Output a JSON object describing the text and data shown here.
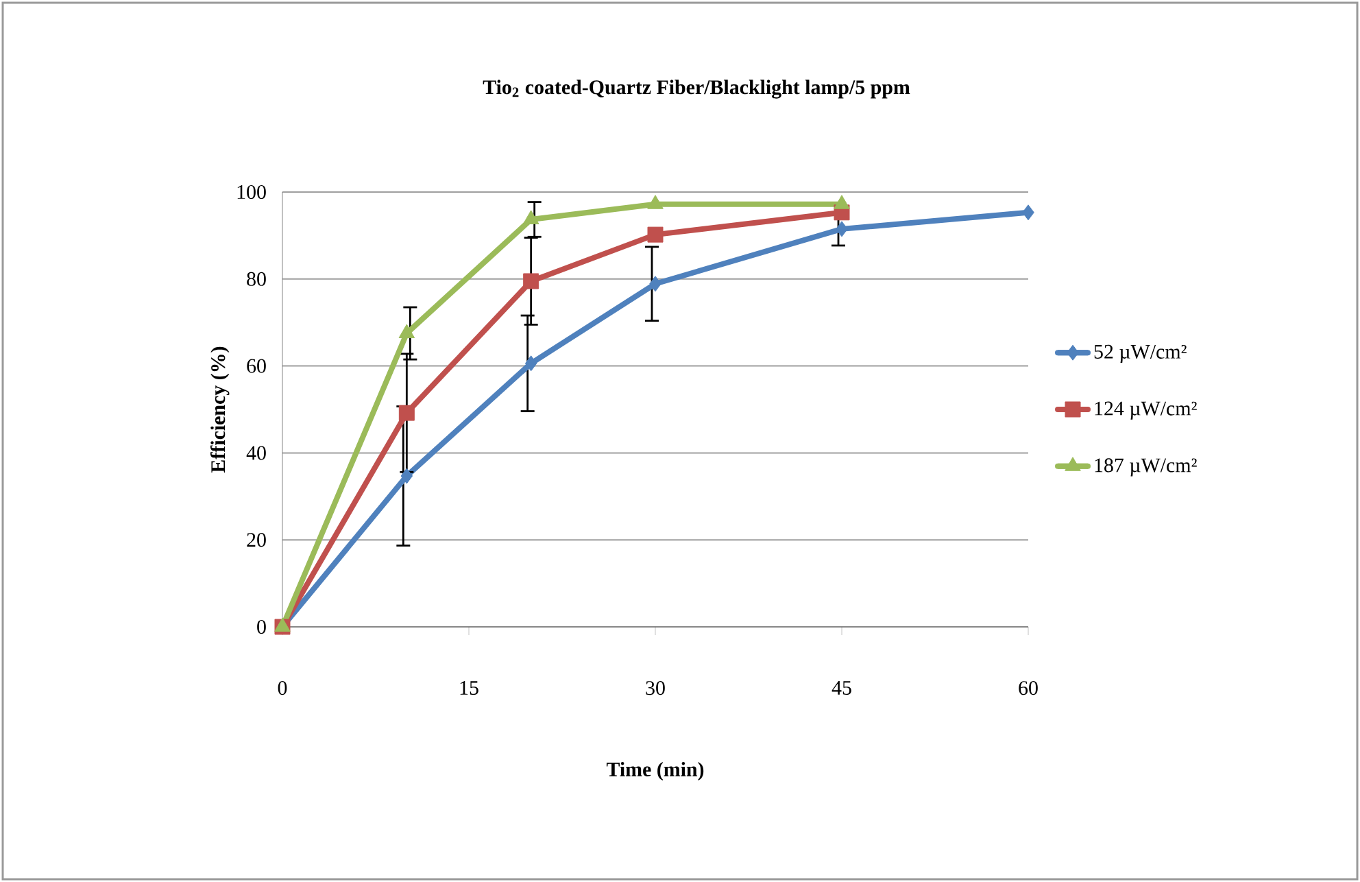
{
  "chart_data": {
    "type": "line",
    "title": "Tio$_{2}$ coated-Quartz Fiber/Blacklight lamp/5 ppm",
    "xlabel": "Time (min)",
    "ylabel": "Efficiency (%)",
    "xlim": [
      0,
      60
    ],
    "xticks": [
      0,
      15,
      30,
      45,
      60
    ],
    "ylim": [
      0,
      100
    ],
    "yticks": [
      0,
      20,
      40,
      60,
      80,
      100
    ],
    "grid": "y",
    "legend": "right",
    "series": [
      {
        "name": "52  µW/cm²",
        "color": "#4f81bd",
        "marker": "diamond",
        "x": [
          0,
          10,
          20,
          30,
          45,
          60
        ],
        "values": [
          0,
          34.7,
          60.6,
          78.9,
          91.5,
          95.3
        ],
        "errors": [
          null,
          16,
          11,
          8.5,
          3.8,
          null
        ]
      },
      {
        "name": "124  µW/cm²",
        "color": "#c0504d",
        "marker": "square",
        "x": [
          0,
          10,
          20,
          30,
          45
        ],
        "values": [
          0,
          49.2,
          79.5,
          90.2,
          95.3
        ],
        "errors": [
          null,
          13.6,
          10,
          null,
          null
        ]
      },
      {
        "name": "187  µW/cm²",
        "color": "#9bbb59",
        "marker": "triangle",
        "x": [
          0,
          10,
          20,
          30,
          45
        ],
        "values": [
          0,
          67.5,
          93.7,
          97.2,
          97.2
        ],
        "errors": [
          null,
          6,
          4,
          null,
          null
        ]
      }
    ]
  }
}
